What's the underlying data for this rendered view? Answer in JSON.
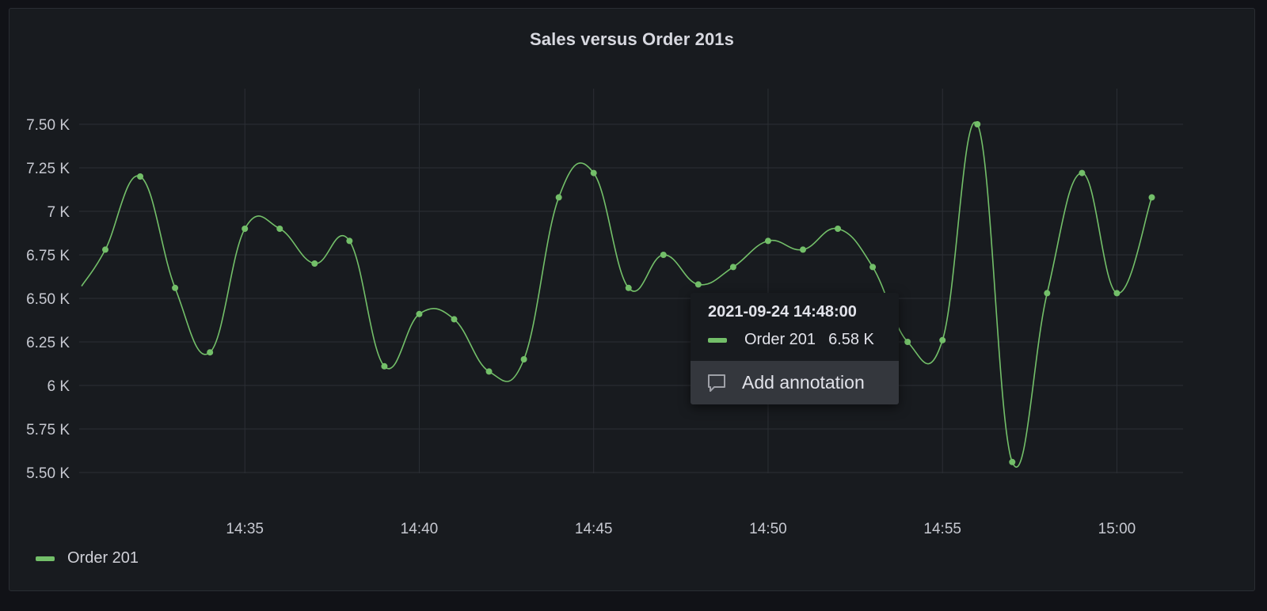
{
  "panel": {
    "title": "Sales versus Order 201s"
  },
  "colors": {
    "series": "#73bf69",
    "grid": "#2c2f35",
    "background": "#181b1f"
  },
  "chart_data": {
    "type": "line",
    "title": "Sales versus Order 201s",
    "xlabel": "",
    "ylabel": "",
    "x": [
      "14:31",
      "14:32",
      "14:33",
      "14:34",
      "14:35",
      "14:36",
      "14:37",
      "14:38",
      "14:39",
      "14:40",
      "14:41",
      "14:42",
      "14:43",
      "14:44",
      "14:45",
      "14:46",
      "14:47",
      "14:48",
      "14:49",
      "14:50",
      "14:51",
      "14:52",
      "14:53",
      "14:54",
      "14:55",
      "14:56",
      "14:57",
      "14:58",
      "14:59",
      "15:00",
      "15:01"
    ],
    "series": [
      {
        "name": "Order 201",
        "color": "#73bf69",
        "values": [
          6780,
          7200,
          6560,
          6190,
          6900,
          6900,
          6700,
          6830,
          6110,
          6410,
          6380,
          6080,
          6150,
          7080,
          7220,
          6560,
          6750,
          6580,
          6680,
          6830,
          6780,
          6900,
          6680,
          6250,
          6260,
          7500,
          5560,
          6530,
          7220,
          6530,
          7080
        ]
      }
    ],
    "line_start_value": 6570,
    "x_ticks": [
      "14:35",
      "14:40",
      "14:45",
      "14:50",
      "14:55",
      "15:00"
    ],
    "y_ticks": [
      "5.50 K",
      "5.75 K",
      "6 K",
      "6.25 K",
      "6.50 K",
      "6.75 K",
      "7 K",
      "7.25 K",
      "7.50 K"
    ],
    "y_tick_values": [
      5500,
      5750,
      6000,
      6250,
      6500,
      6750,
      7000,
      7250,
      7500
    ],
    "ylim": [
      5500,
      7500
    ],
    "grid": true,
    "legend_position": "bottom-left",
    "smooth": true
  },
  "legend": {
    "items": [
      {
        "label": "Order 201"
      }
    ]
  },
  "tooltip": {
    "time": "2021-09-24 14:48:00",
    "series_name": "Order 201",
    "value": "6.58 K",
    "action_label": "Add annotation",
    "action_icon": "comment-icon"
  }
}
